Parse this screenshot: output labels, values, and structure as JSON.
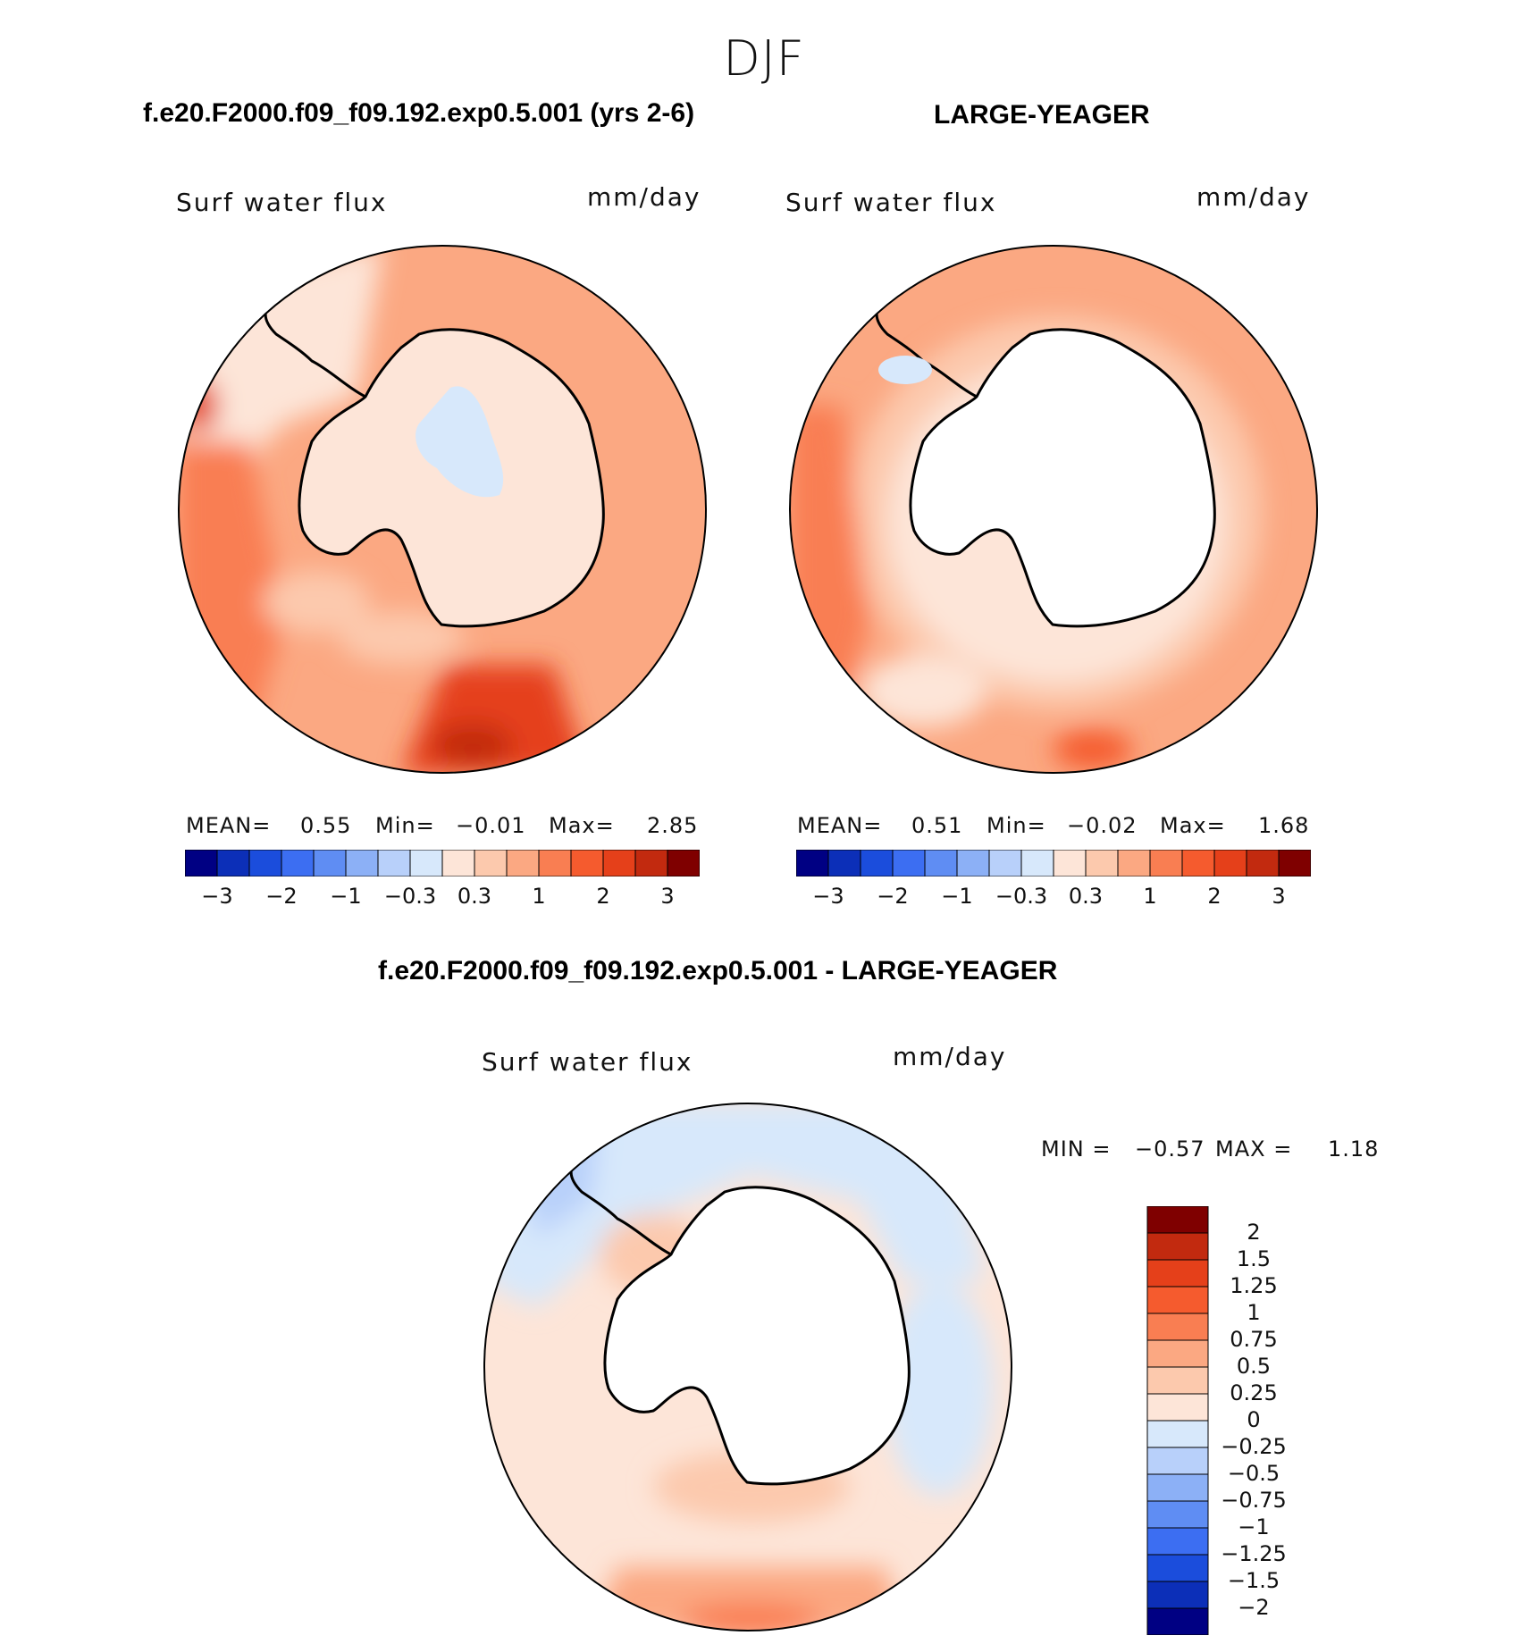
{
  "figure": {
    "title": "DJF"
  },
  "colors": {
    "pos": [
      "#fde5d8",
      "#fcc9ad",
      "#fba882",
      "#f97e52",
      "#f55b2e",
      "#e5401a",
      "#c22a0f",
      "#7f0000"
    ],
    "neg": [
      "#d7e8fb",
      "#b8d0fa",
      "#8cb0f6",
      "#5f8df3",
      "#3c6ef2",
      "#1b4ddc",
      "#0c2fb8",
      "#000083"
    ],
    "land": "#ffffff",
    "coast": "#000000"
  },
  "chart_data": [
    {
      "type": "contour-map",
      "projection": "south-polar-stereographic",
      "case_title": "f.e20.F2000.f09_f09.192.exp0.5.001 (yrs 2-6)",
      "variable": "Surf water flux",
      "units": "mm/day",
      "stats": {
        "mean_label": "MEAN=",
        "mean": "0.55",
        "min_label": "Min=",
        "min": "−0.01",
        "max_label": "Max=",
        "max": "2.85"
      },
      "colorbar_levels": [
        "−3",
        "−2",
        "−1",
        "−0.3",
        "0.3",
        "1",
        "2",
        "3"
      ],
      "field_range": [
        -0.01,
        2.85
      ]
    },
    {
      "type": "contour-map",
      "projection": "south-polar-stereographic",
      "case_title": "LARGE-YEAGER",
      "variable": "Surf water flux",
      "units": "mm/day",
      "stats": {
        "mean_label": "MEAN=",
        "mean": "0.51",
        "min_label": "Min=",
        "min": "−0.02",
        "max_label": "Max=",
        "max": "1.68"
      },
      "colorbar_levels": [
        "−3",
        "−2",
        "−1",
        "−0.3",
        "0.3",
        "1",
        "2",
        "3"
      ],
      "field_range": [
        -0.02,
        1.68
      ]
    },
    {
      "type": "contour-map-difference",
      "projection": "south-polar-stereographic",
      "case_title": "f.e20.F2000.f09_f09.192.exp0.5.001 - LARGE-YEAGER",
      "variable": "Surf water flux",
      "units": "mm/day",
      "stats": {
        "min_label": "MIN =",
        "min": "−0.57",
        "max_label": "MAX =",
        "max": "1.18"
      },
      "colorbar_levels": [
        "2",
        "1.5",
        "1.25",
        "1",
        "0.75",
        "0.5",
        "0.25",
        "0",
        "−0.25",
        "−0.5",
        "−0.75",
        "−1",
        "−1.25",
        "−1.5",
        "−2"
      ],
      "field_range": [
        -0.57,
        1.18
      ]
    }
  ]
}
